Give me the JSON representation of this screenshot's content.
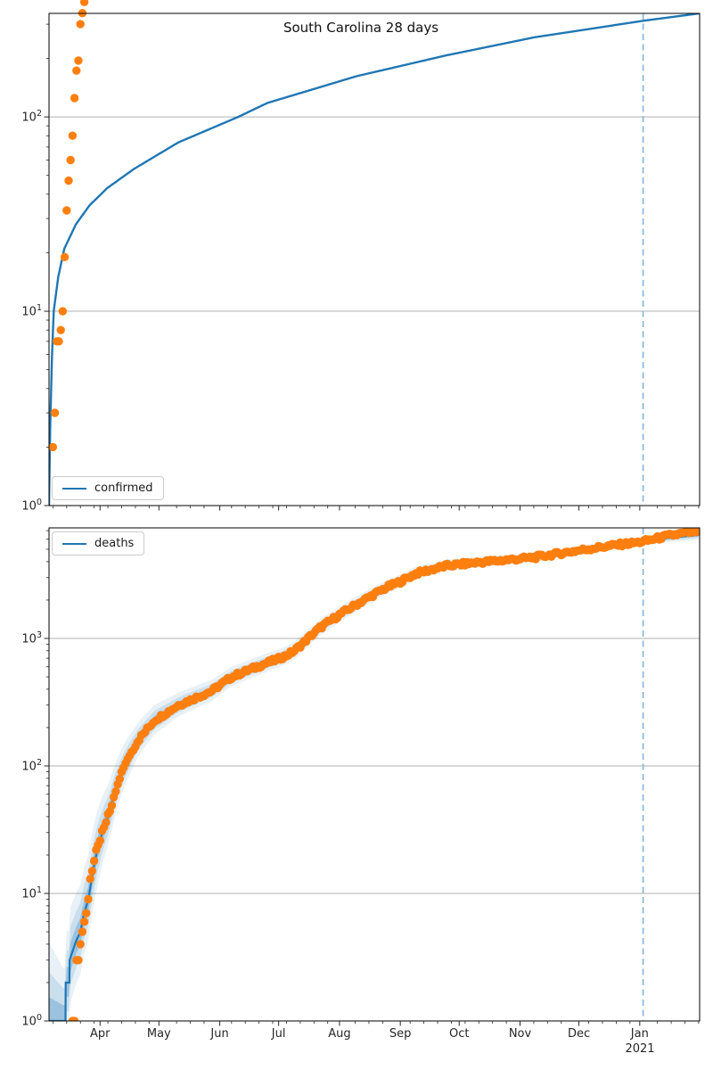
{
  "figure": {
    "title": "South Carolina 28 days"
  },
  "palette": {
    "fit_line": "#1f77b4",
    "marker": "#ff7f0e",
    "band": "#1f77b4",
    "dashed_line": "#8ab6d9",
    "grid": "#b0b0b0",
    "spine": "#000000",
    "tick": "#262626"
  },
  "x_axis": {
    "months": [
      "Apr",
      "May",
      "Jun",
      "Jul",
      "Aug",
      "Sep",
      "Oct",
      "Nov",
      "Dec",
      "Jan"
    ],
    "month_days": [
      31,
      61,
      92,
      122,
      153,
      184,
      214,
      245,
      275,
      306
    ],
    "year_label": "2021",
    "xlim_days": [
      5,
      336.5
    ],
    "minor_tick_every_days": 7
  },
  "chart_data": [
    {
      "id": "confirmed",
      "type": "line+scatter",
      "title": "South Carolina 28 days",
      "legend": [
        "confirmed"
      ],
      "yscale": "log",
      "ylim": [
        1,
        341
      ],
      "yticks_exp": [
        0,
        1,
        2
      ],
      "grid": true,
      "legend_position": "lower left",
      "vline_day": 307.7,
      "fit_line_day_value": [
        [
          5.0,
          1
        ],
        [
          5.6,
          2.5
        ],
        [
          6.5,
          5.8
        ],
        [
          7.4,
          10
        ],
        [
          9.7,
          15
        ],
        [
          12.8,
          21
        ],
        [
          18.7,
          28
        ],
        [
          25.6,
          35
        ],
        [
          34.6,
          43
        ],
        [
          48.3,
          54
        ],
        [
          71,
          74
        ],
        [
          101.4,
          100
        ],
        [
          116.3,
          118
        ],
        [
          161.7,
          162
        ],
        [
          207.1,
          207
        ],
        [
          252.5,
          257
        ],
        [
          308.4,
          313
        ],
        [
          336.5,
          341
        ]
      ],
      "scatter_day_value": [
        [
          7,
          2
        ],
        [
          8,
          3
        ],
        [
          9,
          7
        ],
        [
          10,
          7
        ],
        [
          11,
          8
        ],
        [
          12,
          10
        ],
        [
          13,
          19
        ],
        [
          14,
          33
        ],
        [
          15,
          47
        ],
        [
          16,
          60
        ],
        [
          17,
          80
        ],
        [
          18,
          125
        ],
        [
          19,
          173
        ],
        [
          20,
          195
        ],
        [
          21,
          300
        ],
        [
          22,
          342
        ],
        [
          23,
          390
        ]
      ]
    },
    {
      "id": "deaths",
      "type": "line+scatter+bands",
      "legend": [
        "deaths"
      ],
      "yscale": "log",
      "ylim": [
        1,
        7362
      ],
      "yticks_exp": [
        0,
        1,
        2,
        3
      ],
      "grid": true,
      "legend_position": "upper left",
      "vline_day": 307.7,
      "fit_line_day_value": [
        [
          5,
          1
        ],
        [
          13.4,
          1
        ],
        [
          13.5,
          2
        ],
        [
          15.4,
          2
        ],
        [
          15.5,
          3
        ],
        [
          18.7,
          4.2
        ],
        [
          21,
          5
        ],
        [
          22.8,
          6.9
        ],
        [
          25.1,
          9
        ],
        [
          27.4,
          15
        ],
        [
          29.6,
          22
        ],
        [
          32.4,
          31
        ],
        [
          35.5,
          42
        ],
        [
          39.2,
          68
        ],
        [
          42.8,
          95
        ],
        [
          46,
          120
        ],
        [
          50.5,
          160
        ],
        [
          58.7,
          227
        ],
        [
          71,
          300
        ],
        [
          87.7,
          386
        ],
        [
          98.2,
          500
        ],
        [
          108.6,
          580
        ],
        [
          116.3,
          645
        ],
        [
          121.8,
          690
        ],
        [
          126.3,
          740
        ],
        [
          130,
          800
        ],
        [
          134.5,
          920
        ],
        [
          138.1,
          1040
        ],
        [
          143.6,
          1230
        ],
        [
          154,
          1570
        ],
        [
          161.7,
          1850
        ],
        [
          169.5,
          2168
        ],
        [
          176.7,
          2500
        ],
        [
          183.5,
          2768
        ],
        [
          192.2,
          3240
        ],
        [
          207.1,
          3700
        ],
        [
          222.1,
          3928
        ],
        [
          236.6,
          4100
        ],
        [
          252.5,
          4325
        ],
        [
          267.5,
          4700
        ],
        [
          282.9,
          5114
        ],
        [
          297.9,
          5500
        ],
        [
          307.9,
          5690
        ],
        [
          320.6,
          6150
        ],
        [
          336.5,
          6500
        ]
      ],
      "scatter_anchor_day_value": [
        [
          17,
          1
        ],
        [
          18,
          1
        ],
        [
          19,
          3
        ],
        [
          20,
          3
        ],
        [
          21,
          4
        ],
        [
          22,
          5
        ],
        [
          23,
          6
        ],
        [
          24,
          7
        ],
        [
          25,
          9
        ],
        [
          26,
          13
        ],
        [
          27,
          15
        ],
        [
          28,
          18
        ],
        [
          29,
          22
        ],
        [
          30,
          24
        ],
        [
          31,
          26
        ],
        [
          32,
          31
        ],
        [
          33,
          33
        ],
        [
          34,
          36
        ],
        [
          35,
          42
        ],
        [
          36,
          44
        ],
        [
          37,
          49
        ],
        [
          38,
          57
        ],
        [
          39,
          63
        ],
        [
          40,
          72
        ],
        [
          41,
          79
        ],
        [
          42,
          90
        ],
        [
          43,
          97
        ],
        [
          44,
          105
        ],
        [
          45,
          113
        ],
        [
          46,
          120
        ]
      ],
      "scatter_daily_range": [
        17,
        336
      ],
      "band_halfwidth_log10_up": [
        [
          5,
          0.62
        ],
        [
          12,
          0.42
        ],
        [
          18,
          0.38
        ],
        [
          25,
          0.35
        ],
        [
          29,
          0.32
        ],
        [
          35,
          0.25
        ],
        [
          40,
          0.2
        ],
        [
          50,
          0.14
        ],
        [
          70,
          0.1
        ],
        [
          100,
          0.08
        ],
        [
          130,
          0.072
        ],
        [
          160,
          0.062
        ],
        [
          200,
          0.05
        ],
        [
          240,
          0.042
        ],
        [
          280,
          0.036
        ],
        [
          308,
          0.032
        ],
        [
          336,
          0.045
        ]
      ],
      "band_down_factor": 0.9,
      "band_levels": [
        {
          "scale": 1.0,
          "alpha": 0.1
        },
        {
          "scale": 0.62,
          "alpha": 0.15
        },
        {
          "scale": 0.3,
          "alpha": 0.27
        }
      ]
    }
  ]
}
